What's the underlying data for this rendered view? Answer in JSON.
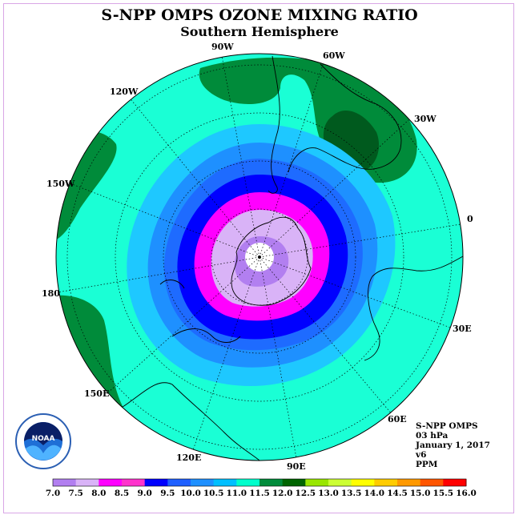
{
  "header": {
    "title": "S-NPP OMPS OZONE MIXING RATIO",
    "subtitle": "Southern Hemisphere"
  },
  "info": {
    "instrument": "S-NPP OMPS",
    "pressure": "03 hPa",
    "date": "January 1, 2017",
    "version": "v6",
    "units": "PPM"
  },
  "logo": {
    "text": "NOAA",
    "icon": "noaa-logo-icon"
  },
  "longitude_labels": [
    "90W",
    "60W",
    "30W",
    "0",
    "30E",
    "60E",
    "90E",
    "120E",
    "150E",
    "180",
    "150W",
    "120W"
  ],
  "colorbar": {
    "ticks": [
      "7.0",
      "7.5",
      "8.0",
      "8.5",
      "9.0",
      "9.5",
      "10.0",
      "10.5",
      "11.0",
      "11.5",
      "12.0",
      "12.5",
      "13.0",
      "13.5",
      "14.0",
      "14.5",
      "15.0",
      "15.5",
      "16.0"
    ],
    "colors": [
      "#b27ff0",
      "#d9b3f7",
      "#ff00ff",
      "#ff33cc",
      "#0000ff",
      "#1e5fff",
      "#1e90ff",
      "#00bfff",
      "#00ffcc",
      "#008b3a",
      "#006400",
      "#99e600",
      "#ccff33",
      "#ffff00",
      "#ffcc00",
      "#ff9900",
      "#ff5500",
      "#ff0000",
      "#8b5a2b"
    ]
  },
  "map_colors": {
    "ocean_bg": "#1affd5",
    "green": "#008b3a",
    "dark_green": "#005a1e",
    "light_blue": "#1ec8ff",
    "mid_blue": "#1e90ff",
    "blue_med": "#1e6bff",
    "blue": "#0000ff",
    "magenta": "#ff00ff",
    "light_purple": "#d9b3f7",
    "purple": "#b27ff0"
  }
}
